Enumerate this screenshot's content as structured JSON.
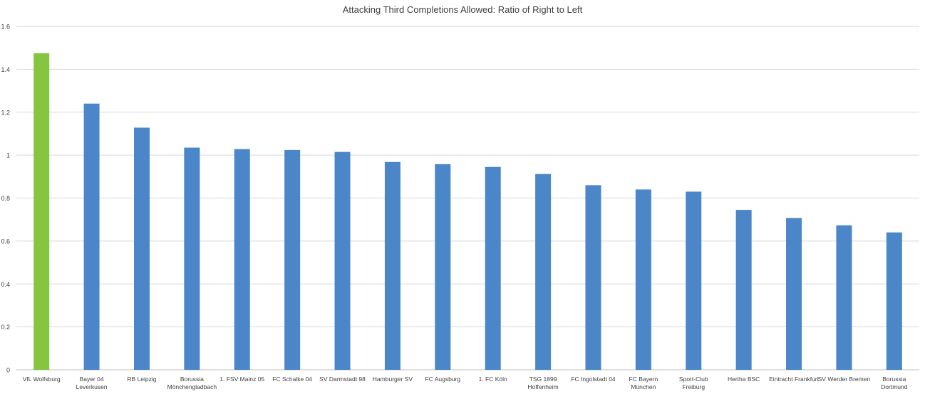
{
  "chart_data": {
    "type": "bar",
    "title": "Attacking Third Completions Allowed: Ratio of Right to Left",
    "xlabel": "",
    "ylabel": "",
    "ylim": [
      0,
      1.6
    ],
    "yticks": [
      "0",
      "0.2",
      "0.4",
      "0.6",
      "0.8",
      "1",
      "1.2",
      "1.4",
      "1.6"
    ],
    "ytick_values": [
      0,
      0.2,
      0.4,
      0.6,
      0.8,
      1,
      1.2,
      1.4,
      1.6
    ],
    "grid": true,
    "legend": "none",
    "categories": [
      [
        "VfL Wolfsburg"
      ],
      [
        "Bayer 04",
        "Leverkusen"
      ],
      [
        "RB Leipzig"
      ],
      [
        "Borussia",
        "Mönchengladbach"
      ],
      [
        "1. FSV Mainz 05"
      ],
      [
        "FC Schalke 04"
      ],
      [
        "SV Darmstadt 98"
      ],
      [
        "Hamburger SV"
      ],
      [
        "FC Augsburg"
      ],
      [
        "1. FC Köln"
      ],
      [
        "TSG 1899",
        "Hoffenheim"
      ],
      [
        "FC Ingolstadt 04"
      ],
      [
        "FC Bayern",
        "München"
      ],
      [
        "Sport-Club",
        "Freiburg"
      ],
      [
        "Hertha BSC"
      ],
      [
        "Eintracht Frankfurt"
      ],
      [
        "SV Werder Bremen"
      ],
      [
        "Borussia",
        "Dortmund"
      ]
    ],
    "values": [
      1.475,
      1.24,
      1.128,
      1.035,
      1.028,
      1.024,
      1.015,
      0.968,
      0.958,
      0.945,
      0.912,
      0.86,
      0.84,
      0.83,
      0.745,
      0.707,
      0.673,
      0.64
    ],
    "highlight_index": 0,
    "colors": {
      "default_bar": "#4a86c8",
      "highlight_bar": "#86c540",
      "grid": "#d9d9d9",
      "axis": "#bfbfbf",
      "text": "#404040"
    }
  }
}
